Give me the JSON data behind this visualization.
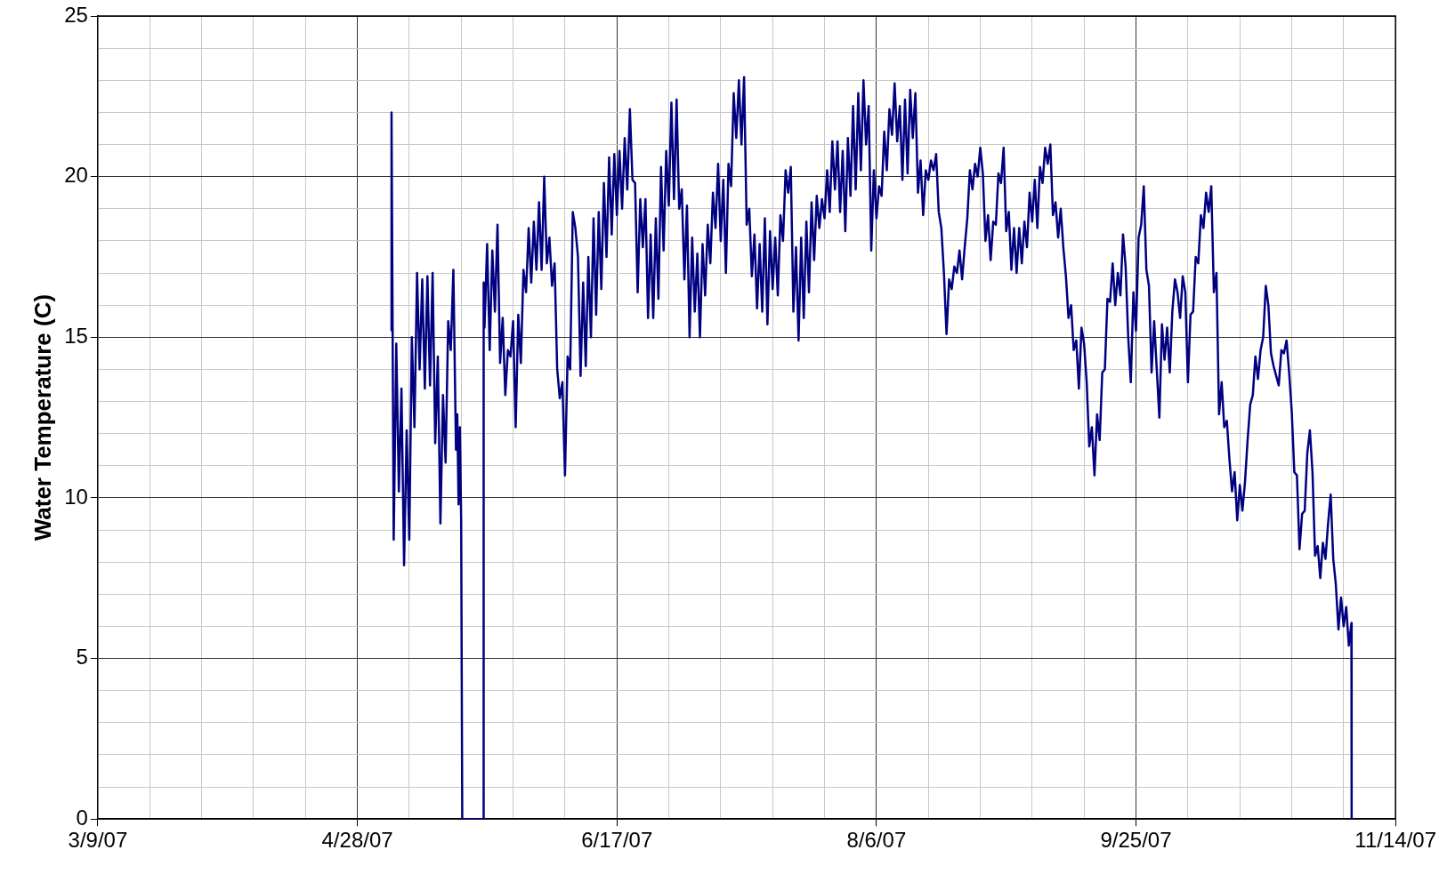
{
  "chart_data": {
    "type": "line",
    "ylabel": "Water Temperature (C)",
    "xlim": [
      "--03-09",
      "--11-14"
    ],
    "xticks": [
      {
        "value": "--03-09",
        "label": "3/9/07"
      },
      {
        "value": "--03-19",
        "label": null
      },
      {
        "value": "--03-29",
        "label": null
      },
      {
        "value": "--04-08",
        "label": null
      },
      {
        "value": "--04-18",
        "label": null
      },
      {
        "value": "--04-28",
        "label": "4/28/07"
      },
      {
        "value": "--05-08",
        "label": null
      },
      {
        "value": "--05-18",
        "label": null
      },
      {
        "value": "--05-28",
        "label": null
      },
      {
        "value": "--06-07",
        "label": null
      },
      {
        "value": "--06-17",
        "label": "6/17/07"
      },
      {
        "value": "--06-27",
        "label": null
      },
      {
        "value": "--07-07",
        "label": null
      },
      {
        "value": "--07-17",
        "label": null
      },
      {
        "value": "--07-27",
        "label": null
      },
      {
        "value": "--08-06",
        "label": "8/6/07"
      },
      {
        "value": "--08-16",
        "label": null
      },
      {
        "value": "--08-26",
        "label": null
      },
      {
        "value": "--09-05",
        "label": null
      },
      {
        "value": "--09-15",
        "label": null
      },
      {
        "value": "--09-25",
        "label": "9/25/07"
      },
      {
        "value": "--10-05",
        "label": null
      },
      {
        "value": "--10-15",
        "label": null
      },
      {
        "value": "--10-25",
        "label": null
      },
      {
        "value": "--11-04",
        "label": null
      },
      {
        "value": "--11-14",
        "label": "11/14/07"
      }
    ],
    "ylim": [
      0,
      25
    ],
    "yticks": [
      0,
      {
        "value": 1,
        "label": null
      },
      {
        "value": 2,
        "label": null
      },
      {
        "value": 3,
        "label": null
      },
      {
        "value": 4,
        "label": null
      },
      5,
      {
        "value": 6,
        "label": null
      },
      {
        "value": 7,
        "label": null
      },
      {
        "value": 8,
        "label": null
      },
      {
        "value": 9,
        "label": null
      },
      10,
      {
        "value": 11,
        "label": null
      },
      {
        "value": 12,
        "label": null
      },
      {
        "value": 13,
        "label": null
      },
      {
        "value": 14,
        "label": null
      },
      15,
      {
        "value": 16,
        "label": null
      },
      {
        "value": 17,
        "label": null
      },
      {
        "value": 18,
        "label": null
      },
      {
        "value": 19,
        "label": null
      },
      20,
      {
        "value": 21,
        "label": null
      },
      {
        "value": 22,
        "label": null
      },
      {
        "value": 23,
        "label": null
      },
      {
        "value": 24,
        "label": null
      },
      25
    ],
    "grid": true,
    "legend": false,
    "marker": "none",
    "series": [
      {
        "color": "#000080",
        "x": [
          "--05-04T12:00",
          "--05-04T14:00",
          "--05-05",
          "--05-05T12:00",
          "--05-06",
          "--05-06T12:00",
          "--05-07",
          "--05-07T12:00",
          "--05-08",
          "--05-08T12:00",
          "--05-09",
          "--05-09T12:00",
          "--05-10",
          "--05-10T12:00",
          "--05-11",
          "--05-11T12:00",
          "--05-12",
          "--05-12T12:00",
          "--05-13",
          "--05-13T12:00",
          "--05-14",
          "--05-14T12:00",
          "--05-15",
          "--05-15T12:00",
          "--05-16",
          "--05-16T12:00",
          "--05-17",
          "--05-17T06:00",
          "--05-17T12:00",
          "--05-17T18:00",
          "--05-18",
          "--05-18T05:00",
          "--05-22T07:00",
          "--05-22T08:00",
          "--05-22T12:00",
          "--05-23",
          "--05-23T12:00",
          "--05-24",
          "--05-24T12:00",
          "--05-25",
          "--05-25T12:00",
          "--05-26",
          "--05-26T12:00",
          "--05-27",
          "--05-27T12:00",
          "--05-28",
          "--05-28T12:00",
          "--05-29",
          "--05-29T12:00",
          "--05-30",
          "--05-30T12:00",
          "--05-31",
          "--05-31T12:00",
          "--06-01",
          "--06-01T12:00",
          "--06-02",
          "--06-02T12:00",
          "--06-03",
          "--06-03T12:00",
          "--06-04",
          "--06-04T12:00",
          "--06-05",
          "--06-05T12:00",
          "--06-06",
          "--06-06T12:00",
          "--06-07",
          "--06-07T12:00",
          "--06-08",
          "--06-08T12:00",
          "--06-09",
          "--06-09T12:00",
          "--06-10",
          "--06-10T12:00",
          "--06-11",
          "--06-11T12:00",
          "--06-12",
          "--06-12T12:00",
          "--06-13",
          "--06-13T12:00",
          "--06-14",
          "--06-14T12:00",
          "--06-15",
          "--06-15T12:00",
          "--06-16",
          "--06-16T12:00",
          "--06-17",
          "--06-17T12:00",
          "--06-18",
          "--06-18T12:00",
          "--06-19",
          "--06-19T12:00",
          "--06-20",
          "--06-20T12:00",
          "--06-21",
          "--06-21T12:00",
          "--06-22",
          "--06-22T12:00",
          "--06-23",
          "--06-23T12:00",
          "--06-24",
          "--06-24T12:00",
          "--06-25",
          "--06-25T12:00",
          "--06-26",
          "--06-26T12:00",
          "--06-27",
          "--06-27T12:00",
          "--06-28",
          "--06-28T12:00",
          "--06-29",
          "--06-29T12:00",
          "--06-30",
          "--06-30T12:00",
          "--07-01",
          "--07-01T12:00",
          "--07-02",
          "--07-02T12:00",
          "--07-03",
          "--07-03T12:00",
          "--07-04",
          "--07-04T12:00",
          "--07-05",
          "--07-05T12:00",
          "--07-06",
          "--07-06T12:00",
          "--07-07",
          "--07-07T12:00",
          "--07-08",
          "--07-08T12:00",
          "--07-09",
          "--07-09T12:00",
          "--07-10",
          "--07-10T12:00",
          "--07-11",
          "--07-11T12:00",
          "--07-12",
          "--07-12T12:00",
          "--07-13",
          "--07-13T12:00",
          "--07-14",
          "--07-14T12:00",
          "--07-15",
          "--07-15T12:00",
          "--07-16",
          "--07-16T12:00",
          "--07-17",
          "--07-17T12:00",
          "--07-18",
          "--07-18T12:00",
          "--07-19",
          "--07-19T12:00",
          "--07-20",
          "--07-20T12:00",
          "--07-21",
          "--07-21T12:00",
          "--07-22",
          "--07-22T12:00",
          "--07-23",
          "--07-23T12:00",
          "--07-24",
          "--07-24T12:00",
          "--07-25",
          "--07-25T12:00",
          "--07-26",
          "--07-26T12:00",
          "--07-27",
          "--07-27T12:00",
          "--07-28",
          "--07-28T12:00",
          "--07-29",
          "--07-29T12:00",
          "--07-30",
          "--07-30T12:00",
          "--07-31",
          "--07-31T12:00",
          "--08-01",
          "--08-01T12:00",
          "--08-02",
          "--08-02T12:00",
          "--08-03",
          "--08-03T12:00",
          "--08-04",
          "--08-04T12:00",
          "--08-05",
          "--08-05T12:00",
          "--08-06",
          "--08-06T12:00",
          "--08-07",
          "--08-07T12:00",
          "--08-08",
          "--08-08T12:00",
          "--08-09",
          "--08-09T12:00",
          "--08-10",
          "--08-10T12:00",
          "--08-11",
          "--08-11T12:00",
          "--08-12",
          "--08-12T12:00",
          "--08-13",
          "--08-13T12:00",
          "--08-14",
          "--08-14T12:00",
          "--08-15",
          "--08-15T12:00",
          "--08-16",
          "--08-16T12:00",
          "--08-17",
          "--08-17T12:00",
          "--08-18",
          "--08-18T12:00",
          "--08-19",
          "--08-19T12:00",
          "--08-20",
          "--08-20T12:00",
          "--08-21",
          "--08-21T12:00",
          "--08-22",
          "--08-22T12:00",
          "--08-23",
          "--08-23T12:00",
          "--08-24",
          "--08-24T12:00",
          "--08-25",
          "--08-25T12:00",
          "--08-26",
          "--08-26T12:00",
          "--08-27",
          "--08-27T12:00",
          "--08-28",
          "--08-28T12:00",
          "--08-29",
          "--08-29T12:00",
          "--08-30",
          "--08-30T12:00",
          "--08-31",
          "--08-31T12:00",
          "--09-01",
          "--09-01T12:00",
          "--09-02",
          "--09-02T12:00",
          "--09-03",
          "--09-03T12:00",
          "--09-04",
          "--09-04T12:00",
          "--09-05",
          "--09-05T12:00",
          "--09-06",
          "--09-06T12:00",
          "--09-07",
          "--09-07T12:00",
          "--09-08",
          "--09-08T12:00",
          "--09-09",
          "--09-09T12:00",
          "--09-10",
          "--09-10T12:00",
          "--09-11",
          "--09-11T12:00",
          "--09-12",
          "--09-12T12:00",
          "--09-13",
          "--09-13T12:00",
          "--09-14",
          "--09-14T12:00",
          "--09-15",
          "--09-15T12:00",
          "--09-16",
          "--09-16T12:00",
          "--09-17",
          "--09-17T12:00",
          "--09-18",
          "--09-18T12:00",
          "--09-19",
          "--09-19T12:00",
          "--09-20",
          "--09-20T12:00",
          "--09-21",
          "--09-21T12:00",
          "--09-22",
          "--09-22T12:00",
          "--09-23",
          "--09-23T12:00",
          "--09-24",
          "--09-24T12:00",
          "--09-25",
          "--09-25T12:00",
          "--09-26",
          "--09-26T12:00",
          "--09-27",
          "--09-27T12:00",
          "--09-28",
          "--09-28T12:00",
          "--09-29",
          "--09-29T12:00",
          "--09-30",
          "--09-30T12:00",
          "--10-01",
          "--10-01T12:00",
          "--10-02",
          "--10-02T12:00",
          "--10-03",
          "--10-03T12:00",
          "--10-04",
          "--10-04T12:00",
          "--10-05",
          "--10-05T12:00",
          "--10-06",
          "--10-06T12:00",
          "--10-07",
          "--10-07T12:00",
          "--10-08",
          "--10-08T12:00",
          "--10-09",
          "--10-09T12:00",
          "--10-10",
          "--10-10T12:00",
          "--10-11",
          "--10-11T12:00",
          "--10-12",
          "--10-12T12:00",
          "--10-13",
          "--10-13T12:00",
          "--10-14",
          "--10-14T12:00",
          "--10-15",
          "--10-15T12:00",
          "--10-16",
          "--10-16T12:00",
          "--10-17",
          "--10-17T12:00",
          "--10-18",
          "--10-18T12:00",
          "--10-19",
          "--10-19T12:00",
          "--10-20",
          "--10-20T12:00",
          "--10-21",
          "--10-21T12:00",
          "--10-22",
          "--10-22T12:00",
          "--10-23",
          "--10-23T12:00",
          "--10-24",
          "--10-24T12:00",
          "--10-25",
          "--10-25T12:00",
          "--10-26",
          "--10-26T12:00",
          "--10-27",
          "--10-27T12:00",
          "--10-28",
          "--10-28T12:00",
          "--10-29",
          "--10-29T12:00",
          "--10-30",
          "--10-30T12:00",
          "--10-31",
          "--10-31T12:00",
          "--11-01",
          "--11-01T12:00",
          "--11-02",
          "--11-02T12:00",
          "--11-03",
          "--11-03T12:00",
          "--11-04",
          "--11-04T12:00",
          "--11-05",
          "--11-05T12:00",
          "--11-05T13:00"
        ],
        "values": [
          15.2,
          22,
          8.7,
          14.8,
          10.2,
          13.4,
          7.9,
          12.1,
          8.7,
          15.0,
          12.2,
          17.0,
          14.0,
          16.8,
          13.4,
          16.9,
          13.5,
          17.0,
          11.7,
          14.4,
          9.2,
          13.2,
          11.1,
          15.5,
          14.6,
          17.1,
          11.5,
          12.6,
          9.8,
          12.2,
          9.3,
          0,
          0,
          16.7,
          15.3,
          17.9,
          14.6,
          17.7,
          15.8,
          18.5,
          14.2,
          15.6,
          13.2,
          14.6,
          14.4,
          15.5,
          12.2,
          15.7,
          14.2,
          17.1,
          16.4,
          18.4,
          16.7,
          18.6,
          17.1,
          19.2,
          17.1,
          20.0,
          17.3,
          18.1,
          16.6,
          17.3,
          14.0,
          13.1,
          13.6,
          10.7,
          14.4,
          14.0,
          18.9,
          18.4,
          17.5,
          13.8,
          16.7,
          14.1,
          17.5,
          15.0,
          18.7,
          15.7,
          18.9,
          16.5,
          19.8,
          17.5,
          20.6,
          18.2,
          20.7,
          18.8,
          20.8,
          19.0,
          21.2,
          19.6,
          22.1,
          19.9,
          19.8,
          16.4,
          19.3,
          17.8,
          19.3,
          15.6,
          18.2,
          15.6,
          18.7,
          16.2,
          20.3,
          17.7,
          20.8,
          19.1,
          22.3,
          19.3,
          22.4,
          19.0,
          19.6,
          16.8,
          19.1,
          15.0,
          18.1,
          15.8,
          17.6,
          15.0,
          17.9,
          16.3,
          18.5,
          17.3,
          19.5,
          18.4,
          20.4,
          18.0,
          19.9,
          17.0,
          20.4,
          19.7,
          22.6,
          21.2,
          23.0,
          21.0,
          23.1,
          18.5,
          19.0,
          16.9,
          18.2,
          15.9,
          17.9,
          15.8,
          18.7,
          15.4,
          18.3,
          16.5,
          18.1,
          16.3,
          18.8,
          18.0,
          20.2,
          19.5,
          20.3,
          15.8,
          17.8,
          14.9,
          18.1,
          15.6,
          18.6,
          16.4,
          19.2,
          17.4,
          19.4,
          18.4,
          19.3,
          18.7,
          20.2,
          18.9,
          21.1,
          19.6,
          21.1,
          18.9,
          20.8,
          18.3,
          21.2,
          19.4,
          22.2,
          19.6,
          22.6,
          20.2,
          23.0,
          21.0,
          22.2,
          17.7,
          20.2,
          18.7,
          19.7,
          19.4,
          21.4,
          20.2,
          22.1,
          21.3,
          22.9,
          21.1,
          22.2,
          19.9,
          22.4,
          20.1,
          22.7,
          21.2,
          22.6,
          19.5,
          20.5,
          18.8,
          20.2,
          19.9,
          20.5,
          20.2,
          20.7,
          18.9,
          18.4,
          17.0,
          15.1,
          16.8,
          16.5,
          17.2,
          17.0,
          17.7,
          16.8,
          17.8,
          18.7,
          20.2,
          19.6,
          20.4,
          20.0,
          20.9,
          20.1,
          18.0,
          18.8,
          17.4,
          18.6,
          18.5,
          20.1,
          19.8,
          20.9,
          18.3,
          18.9,
          17.1,
          18.4,
          17.0,
          18.4,
          17.3,
          18.6,
          17.8,
          19.5,
          18.6,
          19.9,
          18.4,
          20.3,
          19.8,
          20.9,
          20.4,
          21.0,
          18.8,
          19.2,
          18.1,
          19.0,
          17.8,
          16.9,
          15.6,
          16.0,
          14.6,
          14.9,
          13.4,
          15.3,
          14.8,
          13.6,
          11.6,
          12.2,
          10.7,
          12.6,
          11.8,
          13.9,
          14.0,
          16.2,
          16.1,
          17.3,
          16.0,
          17.0,
          16.3,
          18.2,
          17.2,
          15.0,
          13.6,
          16.4,
          15.2,
          18.1,
          18.5,
          19.7,
          17.1,
          16.6,
          13.9,
          15.5,
          14.0,
          12.5,
          15.4,
          14.3,
          15.3,
          13.9,
          15.8,
          16.8,
          16.4,
          15.6,
          16.9,
          16.4,
          13.6,
          15.7,
          15.8,
          17.5,
          17.3,
          18.8,
          18.4,
          19.5,
          18.9,
          19.7,
          16.4,
          17.0,
          12.6,
          13.6,
          12.2,
          12.4,
          11.2,
          10.2,
          10.8,
          9.3,
          10.4,
          9.6,
          10.5,
          11.8,
          12.9,
          13.2,
          14.4,
          13.7,
          14.6,
          15.0,
          16.6,
          16.0,
          14.5,
          14.1,
          13.8,
          13.5,
          14.6,
          14.5,
          14.9,
          13.9,
          12.7,
          10.8,
          10.7,
          8.4,
          9.5,
          9.6,
          11.4,
          12.1,
          10.8,
          8.2,
          8.5,
          7.5,
          8.6,
          8.1,
          9.2,
          10.1,
          8.1,
          7.3,
          5.9,
          6.9,
          6.0,
          6.6,
          5.4,
          6.1,
          0
        ]
      }
    ]
  }
}
